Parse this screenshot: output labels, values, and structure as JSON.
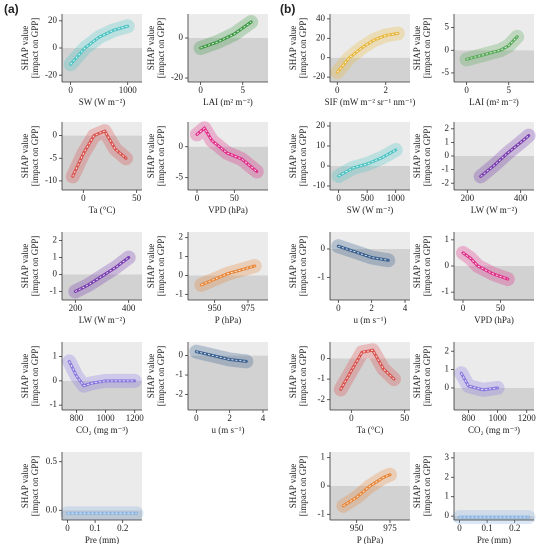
{
  "panel_labels": [
    "(a)",
    "(b)"
  ],
  "chart_data": [
    {
      "type": "line",
      "xlabel": "SW (W m⁻²)",
      "ylabel": [
        "SHAP value",
        "[impact on GPP]"
      ],
      "color": "#4fc4c4",
      "x": [
        0,
        250,
        500,
        750,
        1000
      ],
      "values": [
        -12,
        0,
        8,
        13,
        16
      ],
      "xlim": [
        -150,
        1250
      ],
      "ylim": [
        -25,
        25
      ],
      "xticks": [
        0,
        1000
      ],
      "yticks": [
        -20,
        0,
        20
      ]
    },
    {
      "type": "line",
      "xlabel": "LAI (m² m⁻²)",
      "ylabel": [
        "SHAP value",
        "[impact on GPP]"
      ],
      "color": "#3f9a46",
      "x": [
        0,
        2,
        4,
        5,
        6
      ],
      "values": [
        -5,
        -2,
        2,
        5,
        8
      ],
      "xlim": [
        -1.5,
        8
      ],
      "ylim": [
        -22,
        12
      ],
      "xticks": [
        0,
        5
      ],
      "yticks": [
        -20,
        0
      ]
    },
    {
      "type": "line",
      "xlabel": "Ta (°C)",
      "ylabel": [
        "SHAP value",
        "[impact on GPP]"
      ],
      "color": "#d9534f",
      "x": [
        -10,
        0,
        10,
        20,
        30,
        40
      ],
      "values": [
        -9,
        -4,
        0,
        1,
        -3,
        -5
      ],
      "xlim": [
        -20,
        55
      ],
      "ylim": [
        -12,
        3
      ],
      "xticks": [
        0,
        50
      ],
      "yticks": [
        -10,
        -5,
        0
      ]
    },
    {
      "type": "line",
      "xlabel": "VPD (hPa)",
      "ylabel": [
        "SHAP value",
        "[impact on GPP]"
      ],
      "color": "#e0308a",
      "x": [
        0,
        10,
        20,
        40,
        60,
        80
      ],
      "values": [
        2,
        3,
        1,
        -1,
        -2,
        -4
      ],
      "xlim": [
        -12,
        95
      ],
      "ylim": [
        -7,
        4
      ],
      "xticks": [
        0,
        50
      ],
      "yticks": [
        -5,
        0
      ]
    },
    {
      "type": "line",
      "xlabel": "LW (W m⁻²)",
      "ylabel": [
        "SHAP value",
        "[impact on GPP]"
      ],
      "color": "#7a3fb0",
      "x": [
        200,
        250,
        300,
        350,
        400
      ],
      "values": [
        -1,
        -0.6,
        -0.1,
        0.4,
        1
      ],
      "xlim": [
        150,
        450
      ],
      "ylim": [
        -1.5,
        2.5
      ],
      "xticks": [
        200,
        400
      ],
      "yticks": [
        -1,
        0,
        1,
        2
      ]
    },
    {
      "type": "line",
      "xlabel": "P (hPa)",
      "ylabel": [
        "SHAP value",
        "[impact on GPP]"
      ],
      "color": "#e8873a",
      "x": [
        940,
        950,
        960,
        970,
        980
      ],
      "values": [
        -0.5,
        -0.2,
        0.1,
        0.3,
        0.5
      ],
      "xlim": [
        930,
        990
      ],
      "ylim": [
        -1.3,
        2.3
      ],
      "xticks": [
        950,
        975
      ],
      "yticks": [
        -1,
        0,
        1,
        2
      ]
    },
    {
      "type": "line",
      "xlabel": "CO₂ (mg m⁻³)",
      "ylabel": [
        "SHAP value",
        "[impact on GPP]"
      ],
      "color": "#8a7ae0",
      "x": [
        750,
        800,
        850,
        900,
        1000,
        1200
      ],
      "values": [
        0.8,
        0.2,
        -0.2,
        -0.1,
        0,
        0
      ],
      "xlim": [
        700,
        1250
      ],
      "ylim": [
        -1.2,
        1.6
      ],
      "xticks": [
        800,
        1000,
        1200
      ],
      "yticks": [
        -1,
        0,
        1
      ]
    },
    {
      "type": "line",
      "xlabel": "u (m s⁻¹)",
      "ylabel": [
        "SHAP value",
        "[impact on GPP]"
      ],
      "color": "#3a6090",
      "x": [
        0,
        1,
        2,
        3
      ],
      "values": [
        0.2,
        0,
        -0.2,
        -0.3
      ],
      "xlim": [
        -0.5,
        4.3
      ],
      "ylim": [
        -2.8,
        0.7
      ],
      "xticks": [
        0,
        2,
        4
      ],
      "yticks": [
        -2,
        -1,
        0
      ]
    },
    {
      "type": "line",
      "xlabel": "Pre (mm)",
      "ylabel": [
        "SHAP value",
        "[impact on GPP]"
      ],
      "color": "#8ab4e0",
      "x": [
        0,
        0.25
      ],
      "values": [
        -0.03,
        -0.03
      ],
      "xlim": [
        -0.02,
        0.27
      ],
      "ylim": [
        -0.1,
        0.6
      ],
      "xticks": [
        0,
        0.1,
        0.2
      ],
      "yticks": [
        {
          "value": 0,
          "label": "0.0"
        },
        0.5
      ]
    },
    {
      "type": "line",
      "xlabel": "SIF (mW m⁻² sr⁻¹ nm⁻¹)",
      "ylabel": [
        "SHAP value",
        "[impact on GPP]"
      ],
      "color": "#e8b840",
      "x": [
        0,
        0.5,
        1,
        1.5,
        2,
        2.5
      ],
      "values": [
        -15,
        0,
        10,
        18,
        23,
        25
      ],
      "xlim": [
        -0.3,
        3
      ],
      "ylim": [
        -25,
        45
      ],
      "xticks": [
        0,
        2
      ],
      "yticks": [
        -20,
        0,
        20,
        40
      ]
    },
    {
      "type": "line",
      "xlabel": "LAI (m² m⁻²)",
      "ylabel": [
        "SHAP value",
        "[impact on GPP]"
      ],
      "color": "#5aaa5a",
      "x": [
        0,
        2,
        4,
        5,
        6
      ],
      "values": [
        -2,
        -1,
        0,
        1,
        3
      ],
      "xlim": [
        -1.5,
        8
      ],
      "ylim": [
        -7,
        8
      ],
      "xticks": [
        0,
        5
      ],
      "yticks": [
        -5,
        0,
        5
      ]
    },
    {
      "type": "line",
      "xlabel": "SW (W m⁻²)",
      "ylabel": [
        "SHAP value",
        "[impact on GPP]"
      ],
      "color": "#4fc4c4",
      "x": [
        0,
        250,
        500,
        750,
        1000
      ],
      "values": [
        -5,
        -1,
        1,
        4,
        8
      ],
      "xlim": [
        -150,
        1250
      ],
      "ylim": [
        -12,
        22
      ],
      "xticks": [
        0,
        500,
        1000
      ],
      "yticks": [
        -10,
        0,
        10,
        20
      ]
    },
    {
      "type": "line",
      "xlabel": "LW (W m⁻²)",
      "ylabel": [
        "SHAP value",
        "[impact on GPP]"
      ],
      "color": "#7a3fb0",
      "x": [
        250,
        300,
        350,
        400,
        430
      ],
      "values": [
        -1.5,
        -0.7,
        0.2,
        1,
        1.5
      ],
      "xlim": [
        150,
        450
      ],
      "ylim": [
        -2.5,
        2.5
      ],
      "xticks": [
        200,
        400
      ],
      "yticks": [
        -2,
        -1,
        0,
        1,
        2
      ]
    },
    {
      "type": "line",
      "xlabel": "u (m s⁻¹)",
      "ylabel": [
        "SHAP value",
        "[impact on GPP]"
      ],
      "color": "#3a6090",
      "x": [
        0,
        1,
        2,
        3
      ],
      "values": [
        0.1,
        -0.1,
        -0.3,
        -0.4
      ],
      "xlim": [
        -0.5,
        4.3
      ],
      "ylim": [
        -1.8,
        0.6
      ],
      "xticks": [
        0,
        2,
        4
      ],
      "yticks": [
        -1,
        0
      ]
    },
    {
      "type": "line",
      "xlabel": "VPD (hPa)",
      "ylabel": [
        "SHAP value",
        "[impact on GPP]"
      ],
      "color": "#e0308a",
      "x": [
        0,
        10,
        20,
        40,
        60
      ],
      "values": [
        0.5,
        0.3,
        0,
        -0.3,
        -0.5
      ],
      "xlim": [
        -12,
        95
      ],
      "ylim": [
        -1.3,
        1.3
      ],
      "xticks": [
        0,
        50
      ],
      "yticks": [
        -1,
        0,
        1
      ]
    },
    {
      "type": "line",
      "xlabel": "Ta (°C)",
      "ylabel": [
        "SHAP value",
        "[impact on GPP]"
      ],
      "color": "#d9534f",
      "x": [
        -10,
        0,
        10,
        20,
        30,
        40
      ],
      "values": [
        -1.5,
        -0.6,
        0.3,
        0.4,
        -0.5,
        -1
      ],
      "xlim": [
        -20,
        55
      ],
      "ylim": [
        -2.5,
        0.8
      ],
      "xticks": [
        0,
        50
      ],
      "yticks": [
        -2,
        -1,
        0
      ]
    },
    {
      "type": "line",
      "xlabel": "CO₂ (mg m⁻³)",
      "ylabel": [
        "SHAP value",
        "[impact on GPP]"
      ],
      "color": "#8a7ae0",
      "x": [
        750,
        800,
        900,
        1000
      ],
      "values": [
        0.8,
        0.1,
        -0.1,
        0
      ],
      "xlim": [
        700,
        1250
      ],
      "ylim": [
        -1.2,
        2.5
      ],
      "xticks": [
        800,
        1000,
        1200
      ],
      "yticks": [
        0,
        1,
        2
      ]
    },
    {
      "type": "line",
      "xlabel": "P (hPa)",
      "ylabel": [
        "SHAP value",
        "[impact on GPP]"
      ],
      "color": "#e8873a",
      "x": [
        940,
        950,
        960,
        970,
        975
      ],
      "values": [
        -0.7,
        -0.4,
        0,
        0.3,
        0.4
      ],
      "xlim": [
        930,
        990
      ],
      "ylim": [
        -1.2,
        1.2
      ],
      "xticks": [
        950,
        975
      ],
      "yticks": [
        -1,
        0,
        1
      ]
    },
    {
      "type": "line",
      "xlabel": "Pre (mm)",
      "ylabel": [
        "SHAP value",
        "[impact on GPP]"
      ],
      "color": "#8ab4e0",
      "x": [
        0,
        0.25
      ],
      "values": [
        -0.05,
        -0.05
      ],
      "xlim": [
        -0.02,
        0.27
      ],
      "ylim": [
        -0.2,
        3.3
      ],
      "xticks": [
        0,
        0.1,
        0.2
      ],
      "yticks": [
        0,
        1,
        2,
        3
      ]
    }
  ]
}
